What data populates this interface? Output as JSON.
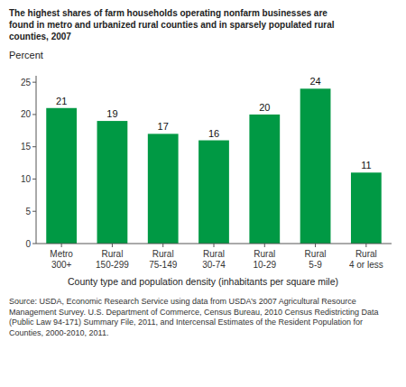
{
  "chart_data": {
    "type": "bar",
    "title": "The highest shares of farm households operating nonfarm businesses are\nfound in metro and urbanized rural counties and in sparsely populated rural\ncounties, 2007",
    "ylabel": "Percent",
    "xlabel": "County type and population density (inhabitants per square mile)",
    "source": "Source: USDA, Economic Research Service using data from USDA’s 2007 Agricultural Resource Management Survey. U.S. Department of Commerce, Census Bureau, 2010 Census Redistricting Data (Public Law 94-171) Summary File, 2011, and Intercensal Estimates of the Resident Population for Counties, 2000-2010, 2011.",
    "categories": [
      "Metro\n300+",
      "Rural\n150-299",
      "Rural\n75-149",
      "Rural\n30-74",
      "Rural\n10-29",
      "Rural\n5-9",
      "Rural\n4 or less"
    ],
    "values": [
      21,
      19,
      17,
      16,
      20,
      24,
      11
    ],
    "color": "#009944",
    "ylim": [
      0,
      26
    ],
    "yticks": [
      0,
      5,
      10,
      15,
      20,
      25
    ],
    "data_labels": true,
    "grid": false
  }
}
